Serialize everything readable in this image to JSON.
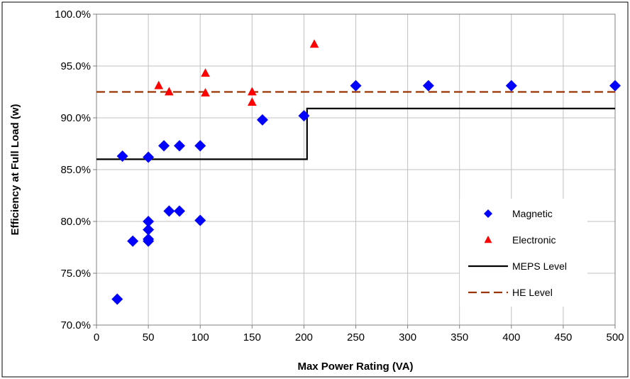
{
  "chart_data": {
    "type": "scatter",
    "title": "",
    "xlabel": "Max Power Rating (VA)",
    "ylabel": "Efficiency at Full Load (w)",
    "xlim": [
      0,
      500
    ],
    "ylim": [
      70,
      100
    ],
    "x_ticks": [
      0,
      50,
      100,
      150,
      200,
      250,
      300,
      350,
      400,
      450,
      500
    ],
    "y_ticks": [
      70,
      75,
      80,
      85,
      90,
      95,
      100
    ],
    "x_tick_labels": [
      "0",
      "50",
      "100",
      "150",
      "200",
      "250",
      "300",
      "350",
      "400",
      "450",
      "500"
    ],
    "y_tick_labels": [
      "70.0%",
      "75.0%",
      "80.0%",
      "85.0%",
      "90.0%",
      "95.0%",
      "100.0%"
    ],
    "grid": true,
    "legend_position": "bottom-right",
    "series": [
      {
        "name": "Magnetic",
        "kind": "points",
        "marker": "diamond",
        "color": "#0000ff",
        "points": [
          [
            20,
            72.5
          ],
          [
            25,
            86.3
          ],
          [
            35,
            78.1
          ],
          [
            50,
            86.2
          ],
          [
            50,
            80.0
          ],
          [
            50,
            79.2
          ],
          [
            50,
            78.3
          ],
          [
            50,
            78.1
          ],
          [
            65,
            87.3
          ],
          [
            70,
            81.0
          ],
          [
            80,
            87.3
          ],
          [
            80,
            81.0
          ],
          [
            100,
            87.3
          ],
          [
            100,
            80.1
          ],
          [
            160,
            89.8
          ],
          [
            200,
            90.2
          ],
          [
            250,
            93.1
          ],
          [
            320,
            93.1
          ],
          [
            400,
            93.1
          ],
          [
            500,
            93.1
          ]
        ]
      },
      {
        "name": "Electronic",
        "kind": "points",
        "marker": "triangle",
        "color": "#ff0000",
        "points": [
          [
            60,
            93.1
          ],
          [
            70,
            92.5
          ],
          [
            105,
            94.3
          ],
          [
            105,
            92.4
          ],
          [
            150,
            92.5
          ],
          [
            150,
            91.5
          ],
          [
            210,
            97.1
          ]
        ]
      },
      {
        "name": "MEPS Level",
        "kind": "line",
        "color": "#000000",
        "dash": false,
        "points": [
          [
            0,
            86.0
          ],
          [
            203,
            86.0
          ],
          [
            203,
            90.9
          ],
          [
            500,
            90.9
          ]
        ]
      },
      {
        "name": "HE Level",
        "kind": "line",
        "color": "#993300",
        "dash": true,
        "points": [
          [
            0,
            92.5
          ],
          [
            500,
            92.5
          ]
        ]
      }
    ]
  }
}
